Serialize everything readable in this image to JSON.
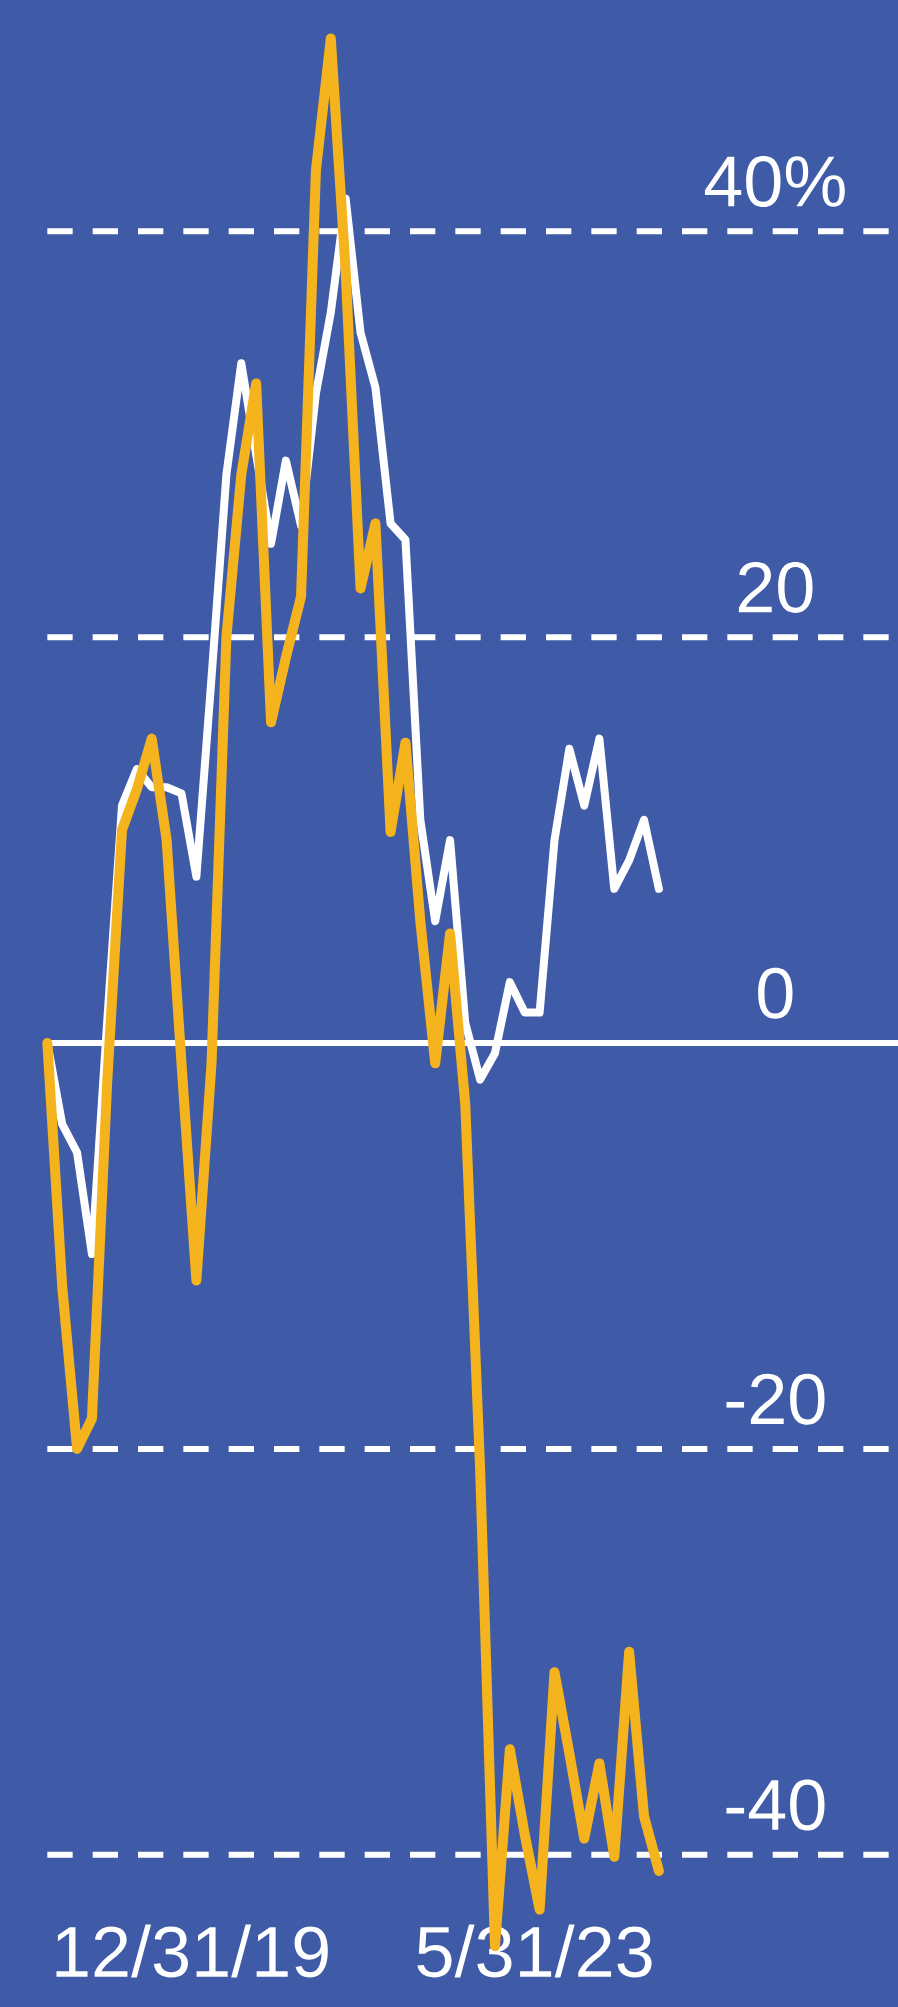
{
  "chart_data": {
    "type": "line",
    "x": [
      "2018-07-27",
      "2018-09-19",
      "2018-11-12",
      "2019-01-05",
      "2019-03-01",
      "2019-04-24",
      "2019-06-17",
      "2019-08-10",
      "2019-10-03",
      "2019-11-26",
      "2020-01-19",
      "2020-03-14",
      "2020-05-07",
      "2020-06-30",
      "2020-08-23",
      "2020-10-16",
      "2020-12-09",
      "2021-02-02",
      "2021-03-28",
      "2021-05-21",
      "2021-07-14",
      "2021-09-06",
      "2021-10-30",
      "2021-12-24",
      "2022-02-16",
      "2022-04-11",
      "2022-06-04",
      "2022-07-28",
      "2022-09-21",
      "2022-11-14",
      "2023-01-07",
      "2023-03-02",
      "2023-04-25",
      "2023-06-18",
      "2023-08-11",
      "2023-10-04",
      "2023-11-27",
      "2024-01-21",
      "2024-03-15",
      "2024-05-08",
      "2024-07-01",
      "2024-08-24"
    ],
    "series": [
      {
        "color": "#ffffff",
        "values": [
          0,
          -4,
          -5.4,
          -10.4,
          1,
          11.7,
          13.5,
          12.6,
          12.6,
          12.3,
          8.2,
          18,
          28,
          33.5,
          29,
          24.6,
          28.7,
          25.5,
          32,
          36,
          41.6,
          35,
          32.3,
          25.6,
          24.8,
          11,
          6,
          10,
          1,
          -1.8,
          -0.5,
          3,
          1.5,
          1.5,
          10,
          14.5,
          11.7,
          15,
          7.6,
          9,
          11,
          7.6
        ]
      },
      {
        "color": "#f5b41e",
        "values": [
          0,
          -12,
          -20,
          -18.5,
          -2,
          10.5,
          12.5,
          15,
          10,
          -1,
          -11.7,
          -1,
          20,
          28,
          32.5,
          15.8,
          19,
          22,
          43,
          49.5,
          38,
          22.4,
          25.6,
          10.4,
          14.8,
          6,
          -1,
          5.4,
          -3,
          -21,
          -44.5,
          -34.8,
          -39,
          -42.7,
          -31,
          -35,
          -39.2,
          -35.5,
          -40.1,
          -30,
          -38.1,
          -40.8
        ]
      }
    ],
    "xlim": [
      "2018-07-27",
      "2027-01-09"
    ],
    "xticks": [
      {
        "value": "2019-12-31",
        "label": "12/31/19"
      },
      {
        "value": "2023-05-31",
        "label": "5/31/23"
      }
    ],
    "ylim": [
      -47.5,
      51.4
    ],
    "yticks": [
      {
        "value": 40,
        "label": "40%"
      },
      20,
      0,
      -20,
      -40
    ],
    "grid": "y",
    "ref_lines": [
      {
        "axis": "y",
        "value": 0,
        "color": "#ffffff",
        "line_style": "solid"
      }
    ],
    "marker": "none",
    "line_style": "solid"
  }
}
